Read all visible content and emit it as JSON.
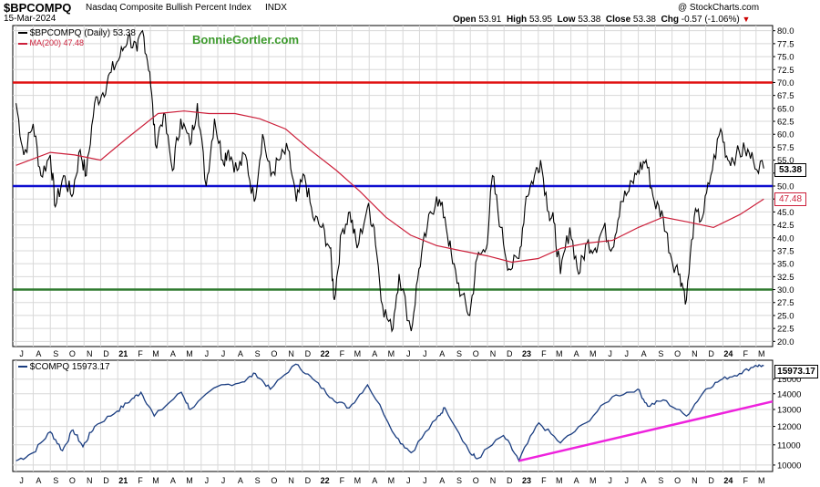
{
  "header": {
    "symbol": "$BPCOMPQ",
    "name": "Nasdaq Composite Bullish Percent Index",
    "exchange": "INDX",
    "date": "15-Mar-2024",
    "watermark": "@ StockCharts.com",
    "ohlc": {
      "open_label": "Open",
      "open": "53.91",
      "high_label": "High",
      "high": "53.95",
      "low_label": "Low",
      "low": "53.38",
      "close_label": "Close",
      "close": "53.38",
      "chg_label": "Chg",
      "chg": "-0.57 (-1.06%)"
    }
  },
  "top_panel": {
    "legend_series": "$BPCOMPQ (Daily) 53.38",
    "legend_ma": "MA(200) 47.48",
    "brand": "BonnieGortler.com",
    "last_value_tag": "53.38",
    "ma_value_tag": "47.48"
  },
  "bottom_panel": {
    "legend_series": "$COMPQ 15973.17",
    "last_value_tag": "15973.17"
  },
  "colors": {
    "series": "#000000",
    "ma": "#cc1f3a",
    "level_70": "#e01010",
    "level_50": "#1010d0",
    "level_30": "#2f7a2f",
    "compq": "#1a3d80",
    "trendline": "#ee22dd",
    "grid": "#d8d8d8",
    "chg_down": "#cc0000"
  },
  "chart_data": [
    {
      "type": "line",
      "title": "$BPCOMPQ Nasdaq Composite Bullish Percent Index",
      "x_tick_labels": [
        "J",
        "A",
        "S",
        "O",
        "N",
        "D",
        "21",
        "F",
        "M",
        "A",
        "M",
        "J",
        "J",
        "A",
        "S",
        "O",
        "N",
        "D",
        "22",
        "F",
        "M",
        "A",
        "M",
        "J",
        "J",
        "A",
        "S",
        "O",
        "N",
        "D",
        "23",
        "F",
        "M",
        "A",
        "M",
        "J",
        "J",
        "A",
        "S",
        "O",
        "N",
        "D",
        "24",
        "F",
        "M"
      ],
      "y_tick_labels": [
        "20.0",
        "22.5",
        "25.0",
        "27.5",
        "30.0",
        "32.5",
        "35.0",
        "37.5",
        "40.0",
        "42.5",
        "45.0",
        "47.5",
        "50.0",
        "52.5",
        "55.0",
        "57.5",
        "60.0",
        "62.5",
        "65.0",
        "67.5",
        "70.0",
        "72.5",
        "75.0",
        "77.5",
        "80.0"
      ],
      "ylim": [
        19,
        81
      ],
      "x_range": [
        "2020-07",
        "2024-03"
      ],
      "horizontal_levels": [
        70,
        50,
        30
      ],
      "series": [
        {
          "name": "$BPCOMPQ (Daily)",
          "x": [
            "2020-07-01",
            "2020-07-15",
            "2020-08-01",
            "2020-08-15",
            "2020-09-01",
            "2020-09-10",
            "2020-09-25",
            "2020-10-10",
            "2020-10-25",
            "2020-11-05",
            "2020-11-20",
            "2020-12-05",
            "2020-12-20",
            "2021-01-05",
            "2021-01-20",
            "2021-02-05",
            "2021-02-15",
            "2021-02-28",
            "2021-03-10",
            "2021-03-25",
            "2021-04-10",
            "2021-04-25",
            "2021-05-12",
            "2021-05-25",
            "2021-06-10",
            "2021-06-25",
            "2021-07-10",
            "2021-07-20",
            "2021-08-05",
            "2021-08-20",
            "2021-09-05",
            "2021-09-20",
            "2021-10-05",
            "2021-10-20",
            "2021-11-05",
            "2021-11-20",
            "2021-12-05",
            "2021-12-20",
            "2022-01-05",
            "2022-01-20",
            "2022-01-28",
            "2022-02-10",
            "2022-02-25",
            "2022-03-10",
            "2022-03-29",
            "2022-04-10",
            "2022-04-25",
            "2022-05-12",
            "2022-05-25",
            "2022-06-16",
            "2022-06-30",
            "2022-07-15",
            "2022-08-01",
            "2022-08-16",
            "2022-08-30",
            "2022-09-15",
            "2022-09-30",
            "2022-10-13",
            "2022-10-30",
            "2022-11-10",
            "2022-11-25",
            "2022-12-10",
            "2022-12-28",
            "2023-01-10",
            "2023-01-25",
            "2023-02-05",
            "2023-02-20",
            "2023-03-01",
            "2023-03-13",
            "2023-03-30",
            "2023-04-15",
            "2023-04-30",
            "2023-05-15",
            "2023-05-30",
            "2023-06-15",
            "2023-06-30",
            "2023-07-15",
            "2023-07-31",
            "2023-08-15",
            "2023-08-30",
            "2023-09-15",
            "2023-09-30",
            "2023-10-15",
            "2023-10-27",
            "2023-11-10",
            "2023-11-25",
            "2023-12-10",
            "2023-12-28",
            "2024-01-10",
            "2024-01-25",
            "2024-02-10",
            "2024-02-25",
            "2024-03-15"
          ],
          "values": [
            66,
            56,
            62,
            52,
            56,
            46,
            52,
            48,
            57,
            52,
            66,
            68,
            72,
            75,
            79,
            76,
            80,
            72,
            58,
            64,
            53,
            63,
            58,
            66,
            50,
            63,
            55,
            57,
            53,
            56,
            47,
            60,
            52,
            55,
            57,
            47,
            52,
            44,
            42,
            38,
            28,
            41,
            45,
            38,
            46,
            42,
            27,
            22,
            33,
            22,
            34,
            42,
            48,
            44,
            35,
            29,
            25,
            36,
            38,
            52,
            42,
            34,
            36,
            48,
            52,
            55,
            45,
            43,
            33,
            42,
            33,
            39,
            38,
            42,
            38,
            47,
            49,
            53,
            55,
            47,
            44,
            36,
            33,
            28,
            44,
            44,
            52,
            61,
            55,
            56,
            57,
            55,
            53.38
          ]
        },
        {
          "name": "MA(200)",
          "x": [
            "2020-07-01",
            "2020-09-01",
            "2020-10-15",
            "2020-12-01",
            "2021-01-15",
            "2021-03-15",
            "2021-05-01",
            "2021-06-15",
            "2021-08-01",
            "2021-09-15",
            "2021-11-01",
            "2021-12-15",
            "2022-02-01",
            "2022-03-15",
            "2022-05-01",
            "2022-06-15",
            "2022-08-01",
            "2022-09-15",
            "2022-11-01",
            "2022-12-15",
            "2023-02-01",
            "2023-03-15",
            "2023-05-01",
            "2023-06-15",
            "2023-08-01",
            "2023-09-15",
            "2023-11-01",
            "2023-12-15",
            "2024-02-01",
            "2024-03-15"
          ],
          "values": [
            54,
            56.5,
            56,
            55,
            59,
            64,
            64.5,
            64,
            64,
            63,
            61,
            57,
            53,
            49,
            44,
            40.5,
            38.5,
            37.5,
            36.5,
            35.3,
            36,
            38,
            39,
            39.5,
            42,
            44,
            43,
            42,
            44.5,
            47.48
          ]
        }
      ]
    },
    {
      "type": "line",
      "title": "$COMPQ",
      "x_tick_labels": [
        "J",
        "A",
        "S",
        "O",
        "N",
        "D",
        "21",
        "F",
        "M",
        "A",
        "M",
        "J",
        "J",
        "A",
        "S",
        "O",
        "N",
        "D",
        "22",
        "F",
        "M",
        "A",
        "M",
        "J",
        "J",
        "A",
        "S",
        "O",
        "N",
        "D",
        "23",
        "F",
        "M",
        "A",
        "M",
        "J",
        "J",
        "A",
        "S",
        "O",
        "N",
        "D",
        "24",
        "F",
        "M"
      ],
      "y_tick_labels": [
        "10000",
        "11000",
        "12000",
        "13000",
        "14000",
        "15000"
      ],
      "ylim": [
        9700,
        16400
      ],
      "log_scale": true,
      "x_range": [
        "2020-07",
        "2024-03"
      ],
      "series": [
        {
          "name": "$COMPQ",
          "x": [
            "2020-07-01",
            "2020-08-01",
            "2020-09-01",
            "2020-09-23",
            "2020-10-12",
            "2020-10-30",
            "2020-11-20",
            "2020-12-31",
            "2021-01-25",
            "2021-02-12",
            "2021-03-08",
            "2021-04-26",
            "2021-05-12",
            "2021-07-01",
            "2021-08-15",
            "2021-09-07",
            "2021-10-04",
            "2021-11-19",
            "2021-12-20",
            "2022-01-24",
            "2022-02-24",
            "2022-03-29",
            "2022-05-20",
            "2022-06-16",
            "2022-07-31",
            "2022-08-16",
            "2022-09-30",
            "2022-10-13",
            "2022-11-30",
            "2022-12-28",
            "2023-02-02",
            "2023-03-13",
            "2023-04-28",
            "2023-06-15",
            "2023-07-31",
            "2023-08-18",
            "2023-09-15",
            "2023-10-27",
            "2023-12-01",
            "2023-12-31",
            "2024-01-31",
            "2024-02-29",
            "2024-03-15"
          ],
          "values": [
            10200,
            10600,
            11700,
            10700,
            11800,
            10900,
            12000,
            12900,
            13600,
            14100,
            12600,
            14100,
            13000,
            14500,
            14800,
            15400,
            14300,
            16100,
            15000,
            13700,
            13100,
            14600,
            11400,
            10600,
            12400,
            13100,
            10600,
            10300,
            11500,
            10200,
            12200,
            11100,
            12200,
            13800,
            14300,
            13200,
            13600,
            12600,
            14300,
            15000,
            15400,
            16000,
            15973.17
          ]
        },
        {
          "name": "trendline",
          "x": [
            "2022-12-28",
            "2024-03-31"
          ],
          "values": [
            10200,
            13500
          ]
        }
      ]
    }
  ]
}
